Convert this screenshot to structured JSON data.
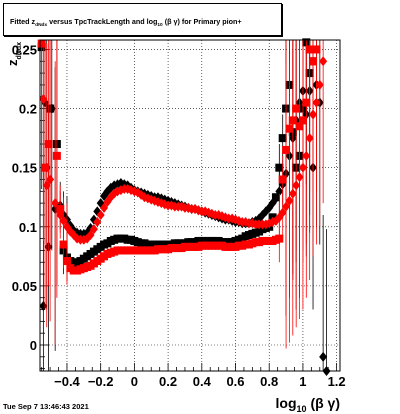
{
  "title": {
    "prefix": "Fitted  z",
    "sub1": "dNdx",
    "middle": "  versus TpcTrackLength and log",
    "sub2": "10",
    "suffix": " (β  γ) for Primary pion+"
  },
  "timestamp": "Tue Sep  7 13:46:43 2021",
  "colors": {
    "series_black": "#000000",
    "series_red": "#ff0000",
    "grid": "#000000"
  },
  "chart_data": {
    "type": "scatter",
    "title": "Fitted  z dNdx  versus TpcTrackLength and log10 (β  γ) for Primary pion+",
    "xlabel": "log10 (β γ)",
    "ylabel": "z dNdx",
    "xlim": [
      -0.56,
      1.22
    ],
    "ylim": [
      -0.022,
      0.258
    ],
    "xticks": [
      -0.4,
      -0.2,
      0,
      0.2,
      0.4,
      0.6,
      0.8,
      1,
      1.2
    ],
    "xtick_labels": [
      "−0.4",
      "−0.2",
      "0",
      "0.2",
      "0.4",
      "0.6",
      "0.8",
      "1",
      "1.2"
    ],
    "yticks": [
      0,
      0.05,
      0.1,
      0.15,
      0.2,
      0.25
    ],
    "ytick_labels": [
      "0",
      "0.05",
      "0.1",
      "0.15",
      "0.2",
      "0.25"
    ],
    "grid": true,
    "series": [
      {
        "marker": "diamond",
        "color": "#000000",
        "x": [
          -0.54,
          -0.53,
          -0.52,
          -0.51,
          -0.49,
          -0.47,
          -0.44,
          -0.42,
          -0.4,
          -0.38,
          -0.36,
          -0.34,
          -0.32,
          -0.3,
          -0.28,
          -0.26,
          -0.24,
          -0.22,
          -0.2,
          -0.18,
          -0.16,
          -0.14,
          -0.12,
          -0.1,
          -0.08,
          -0.06,
          -0.04,
          -0.02,
          0.0,
          0.02,
          0.04,
          0.06,
          0.08,
          0.1,
          0.12,
          0.14,
          0.16,
          0.18,
          0.2,
          0.22,
          0.24,
          0.26,
          0.28,
          0.3,
          0.32,
          0.34,
          0.36,
          0.38,
          0.4,
          0.42,
          0.44,
          0.46,
          0.48,
          0.5,
          0.52,
          0.54,
          0.56,
          0.58,
          0.6,
          0.62,
          0.64,
          0.66,
          0.68,
          0.7,
          0.72,
          0.74,
          0.76,
          0.78,
          0.8,
          0.82,
          0.84,
          0.86,
          0.88,
          0.9,
          0.92,
          0.94,
          0.96,
          0.98,
          1.0,
          1.02,
          1.04,
          1.06,
          1.08,
          1.1,
          1.12,
          1.14
        ],
        "y": [
          0.033,
          0.205,
          0.15,
          0.083,
          0.2,
          0.115,
          0.118,
          0.11,
          0.106,
          0.101,
          0.097,
          0.095,
          0.094,
          0.094,
          0.095,
          0.099,
          0.106,
          0.113,
          0.12,
          0.126,
          0.13,
          0.133,
          0.135,
          0.136,
          0.137,
          0.136,
          0.135,
          0.133,
          0.131,
          0.13,
          0.129,
          0.128,
          0.127,
          0.126,
          0.125,
          0.125,
          0.124,
          0.123,
          0.122,
          0.121,
          0.12,
          0.119,
          0.118,
          0.117,
          0.116,
          0.115,
          0.115,
          0.114,
          0.113,
          0.112,
          0.111,
          0.11,
          0.109,
          0.108,
          0.107,
          0.106,
          0.106,
          0.105,
          0.104,
          0.104,
          0.103,
          0.103,
          0.103,
          0.104,
          0.105,
          0.107,
          0.11,
          0.113,
          0.116,
          0.12,
          0.124,
          0.13,
          0.136,
          0.145,
          0.16,
          0.175,
          0.19,
          0.205,
          0.215,
          0.195,
          0.215,
          0.15,
          0.22,
          0.205,
          -0.01,
          -0.022
        ]
      },
      {
        "marker": "square",
        "color": "#000000",
        "x": [
          -0.55,
          -0.5,
          -0.46,
          -0.42,
          -0.4,
          -0.38,
          -0.36,
          -0.34,
          -0.32,
          -0.3,
          -0.28,
          -0.26,
          -0.24,
          -0.22,
          -0.2,
          -0.18,
          -0.16,
          -0.14,
          -0.12,
          -0.1,
          -0.08,
          -0.06,
          -0.04,
          -0.02,
          0.0,
          0.02,
          0.04,
          0.06,
          0.08,
          0.1,
          0.12,
          0.14,
          0.16,
          0.18,
          0.2,
          0.22,
          0.24,
          0.26,
          0.28,
          0.3,
          0.32,
          0.34,
          0.36,
          0.38,
          0.4,
          0.42,
          0.44,
          0.46,
          0.48,
          0.5,
          0.52,
          0.54,
          0.56,
          0.58,
          0.6,
          0.62,
          0.64,
          0.66,
          0.68,
          0.7,
          0.72,
          0.74,
          0.76,
          0.78,
          0.8,
          0.82,
          0.84,
          0.86,
          0.88,
          0.9,
          0.92,
          0.94,
          0.96,
          0.98,
          1.0,
          1.02,
          1.04,
          1.06
        ],
        "y": [
          0.252,
          0.2,
          0.17,
          0.08,
          0.074,
          0.071,
          0.069,
          0.07,
          0.071,
          0.073,
          0.075,
          0.077,
          0.079,
          0.081,
          0.083,
          0.085,
          0.086,
          0.088,
          0.089,
          0.09,
          0.09,
          0.09,
          0.089,
          0.089,
          0.088,
          0.087,
          0.086,
          0.086,
          0.085,
          0.085,
          0.085,
          0.085,
          0.085,
          0.085,
          0.085,
          0.085,
          0.086,
          0.086,
          0.086,
          0.086,
          0.087,
          0.087,
          0.087,
          0.088,
          0.088,
          0.088,
          0.088,
          0.088,
          0.088,
          0.088,
          0.087,
          0.087,
          0.087,
          0.087,
          0.088,
          0.089,
          0.09,
          0.092,
          0.093,
          0.094,
          0.095,
          0.096,
          0.098,
          0.099,
          0.1,
          0.108,
          0.125,
          0.15,
          0.175,
          0.2,
          0.22,
          0.18,
          0.15,
          0.16,
          0.2,
          0.256,
          0.23,
          0.24
        ]
      },
      {
        "marker": "diamond",
        "color": "#ff0000",
        "x": [
          -0.54,
          -0.52,
          -0.5,
          -0.47,
          -0.44,
          -0.42,
          -0.4,
          -0.38,
          -0.36,
          -0.34,
          -0.32,
          -0.3,
          -0.28,
          -0.26,
          -0.24,
          -0.22,
          -0.2,
          -0.18,
          -0.16,
          -0.14,
          -0.12,
          -0.1,
          -0.08,
          -0.06,
          -0.04,
          -0.02,
          0.0,
          0.02,
          0.04,
          0.06,
          0.08,
          0.1,
          0.12,
          0.14,
          0.16,
          0.18,
          0.2,
          0.22,
          0.24,
          0.26,
          0.28,
          0.3,
          0.32,
          0.34,
          0.36,
          0.38,
          0.4,
          0.42,
          0.44,
          0.46,
          0.48,
          0.5,
          0.52,
          0.54,
          0.56,
          0.58,
          0.6,
          0.62,
          0.64,
          0.66,
          0.68,
          0.7,
          0.72,
          0.74,
          0.76,
          0.78,
          0.8,
          0.82,
          0.84,
          0.86,
          0.88,
          0.9,
          0.92,
          0.94,
          0.96,
          0.98,
          1.0,
          1.02,
          1.04,
          1.06,
          1.08,
          1.1,
          1.12
        ],
        "y": [
          0.208,
          0.135,
          0.14,
          0.12,
          0.11,
          0.105,
          0.1,
          0.096,
          0.093,
          0.09,
          0.089,
          0.089,
          0.09,
          0.093,
          0.098,
          0.104,
          0.11,
          0.116,
          0.121,
          0.125,
          0.128,
          0.13,
          0.131,
          0.132,
          0.132,
          0.131,
          0.13,
          0.129,
          0.127,
          0.125,
          0.124,
          0.123,
          0.122,
          0.121,
          0.12,
          0.119,
          0.118,
          0.118,
          0.117,
          0.117,
          0.117,
          0.116,
          0.116,
          0.115,
          0.115,
          0.114,
          0.113,
          0.113,
          0.112,
          0.111,
          0.11,
          0.11,
          0.109,
          0.108,
          0.107,
          0.107,
          0.106,
          0.105,
          0.104,
          0.104,
          0.103,
          0.103,
          0.102,
          0.102,
          0.102,
          0.102,
          0.103,
          0.104,
          0.105,
          0.108,
          0.112,
          0.117,
          0.122,
          0.128,
          0.135,
          0.142,
          0.15,
          0.16,
          0.175,
          0.195,
          0.205,
          0.22,
          0.24
        ]
      },
      {
        "marker": "square",
        "color": "#ff0000",
        "x": [
          -0.55,
          -0.53,
          -0.51,
          -0.46,
          -0.44,
          -0.42,
          -0.4,
          -0.38,
          -0.36,
          -0.34,
          -0.32,
          -0.3,
          -0.28,
          -0.26,
          -0.24,
          -0.22,
          -0.2,
          -0.18,
          -0.16,
          -0.14,
          -0.12,
          -0.1,
          -0.08,
          -0.06,
          -0.04,
          -0.02,
          0.0,
          0.02,
          0.04,
          0.06,
          0.08,
          0.1,
          0.12,
          0.14,
          0.16,
          0.18,
          0.2,
          0.22,
          0.24,
          0.26,
          0.28,
          0.3,
          0.32,
          0.34,
          0.36,
          0.38,
          0.4,
          0.42,
          0.44,
          0.46,
          0.48,
          0.5,
          0.52,
          0.54,
          0.56,
          0.58,
          0.6,
          0.62,
          0.64,
          0.66,
          0.68,
          0.7,
          0.72,
          0.74,
          0.76,
          0.78,
          0.8,
          0.82,
          0.84,
          0.86,
          0.88,
          0.9,
          0.92,
          0.94,
          0.96,
          0.98,
          1.0,
          1.02,
          1.04,
          1.06,
          1.08
        ],
        "y": [
          0.255,
          0.15,
          0.17,
          0.16,
          0.115,
          0.085,
          0.071,
          0.065,
          0.063,
          0.063,
          0.064,
          0.065,
          0.066,
          0.067,
          0.069,
          0.071,
          0.073,
          0.075,
          0.077,
          0.078,
          0.079,
          0.08,
          0.08,
          0.08,
          0.08,
          0.08,
          0.08,
          0.08,
          0.08,
          0.08,
          0.08,
          0.08,
          0.08,
          0.081,
          0.081,
          0.081,
          0.081,
          0.082,
          0.082,
          0.082,
          0.082,
          0.083,
          0.083,
          0.083,
          0.083,
          0.083,
          0.084,
          0.084,
          0.084,
          0.084,
          0.084,
          0.084,
          0.084,
          0.083,
          0.083,
          0.083,
          0.083,
          0.084,
          0.084,
          0.085,
          0.085,
          0.086,
          0.087,
          0.087,
          0.088,
          0.088,
          0.088,
          0.088,
          0.089,
          0.09,
          0.14,
          0.165,
          0.183,
          0.19,
          0.2,
          0.185,
          0.19,
          0.205,
          0.25,
          0.24,
          0.25
        ]
      }
    ]
  }
}
